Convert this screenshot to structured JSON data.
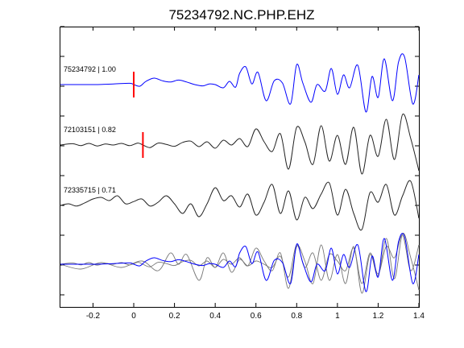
{
  "chart_data": {
    "type": "line",
    "title": "75234792.NC.PHP.EHZ",
    "xlabel": "",
    "ylabel": "",
    "xlim": [
      -0.36,
      1.4
    ],
    "x_ticks": [
      -0.2,
      0,
      0.2,
      0.4,
      0.6,
      0.8,
      1,
      1.2,
      1.4
    ],
    "x_tick_labels": [
      "-0.2",
      "0",
      "0.2",
      "0.4",
      "0.6",
      "0.8",
      "1",
      "1.2",
      "1.4"
    ],
    "grid": false,
    "legend": "none",
    "colors": {
      "reference": "#0000ff",
      "other": "#222222",
      "overlay_other": "#777777",
      "pick": "#ff0000",
      "axes": "#000000"
    },
    "traces": [
      {
        "name": "75234792 | 1.00",
        "color": "#0000ff",
        "pick_time": 0.0,
        "x": [
          -0.36,
          -0.2,
          -0.1,
          -0.02,
          0.0,
          0.03,
          0.06,
          0.1,
          0.14,
          0.18,
          0.22,
          0.26,
          0.3,
          0.34,
          0.37,
          0.4,
          0.44,
          0.47,
          0.5,
          0.52,
          0.55,
          0.58,
          0.61,
          0.65,
          0.69,
          0.73,
          0.77,
          0.8,
          0.83,
          0.87,
          0.9,
          0.94,
          0.97,
          1.0,
          1.03,
          1.06,
          1.1,
          1.14,
          1.17,
          1.2,
          1.23,
          1.27,
          1.3,
          1.33,
          1.37,
          1.4
        ],
        "y": [
          0,
          0,
          0.02,
          0.04,
          0.0,
          -0.05,
          0.1,
          0.2,
          0.12,
          0.08,
          0.14,
          0.08,
          0.0,
          -0.04,
          0.02,
          0.0,
          -0.1,
          0.1,
          -0.08,
          0.35,
          0.55,
          0.02,
          0.38,
          -0.5,
          0.12,
          0.05,
          -0.6,
          0.62,
          0.05,
          -0.55,
          0.0,
          -0.2,
          0.5,
          -0.3,
          0.3,
          -0.1,
          0.6,
          -0.85,
          0.25,
          -0.4,
          0.8,
          -0.5,
          0.7,
          0.85,
          -0.6,
          0.3
        ]
      },
      {
        "name": "72103151 | 0.82",
        "color": "#222222",
        "pick_time": 0.045,
        "x": [
          -0.36,
          -0.3,
          -0.26,
          -0.22,
          -0.18,
          -0.14,
          -0.1,
          -0.06,
          -0.02,
          0.02,
          0.045,
          0.08,
          0.12,
          0.16,
          0.2,
          0.24,
          0.28,
          0.32,
          0.36,
          0.4,
          0.44,
          0.48,
          0.52,
          0.56,
          0.6,
          0.64,
          0.68,
          0.72,
          0.76,
          0.8,
          0.84,
          0.88,
          0.92,
          0.96,
          1.0,
          1.04,
          1.08,
          1.12,
          1.16,
          1.2,
          1.24,
          1.28,
          1.32,
          1.36,
          1.4
        ],
        "y": [
          0,
          0.04,
          -0.02,
          0.05,
          -0.03,
          0.03,
          0.0,
          0.05,
          -0.02,
          0.06,
          0.0,
          -0.08,
          0.06,
          0.02,
          -0.04,
          0.08,
          0.12,
          -0.05,
          0.1,
          -0.1,
          0.15,
          0.0,
          0.2,
          -0.05,
          0.5,
          0.1,
          -0.2,
          0.35,
          -0.75,
          0.55,
          0.1,
          -0.6,
          0.6,
          -0.5,
          0.3,
          -0.6,
          0.55,
          -0.9,
          0.3,
          -0.35,
          0.8,
          -0.45,
          0.95,
          0.2,
          -0.8
        ]
      },
      {
        "name": "72335715 | 0.71",
        "color": "#222222",
        "pick_time": null,
        "x": [
          -0.36,
          -0.32,
          -0.28,
          -0.24,
          -0.2,
          -0.16,
          -0.12,
          -0.08,
          -0.04,
          0.0,
          0.04,
          0.08,
          0.12,
          0.16,
          0.2,
          0.24,
          0.28,
          0.32,
          0.36,
          0.4,
          0.44,
          0.48,
          0.52,
          0.56,
          0.6,
          0.64,
          0.68,
          0.72,
          0.76,
          0.8,
          0.84,
          0.88,
          0.92,
          0.96,
          1.0,
          1.04,
          1.08,
          1.12,
          1.16,
          1.2,
          1.24,
          1.28,
          1.32,
          1.36,
          1.4
        ],
        "y": [
          0,
          0.05,
          -0.02,
          0.08,
          0.2,
          0.25,
          0.15,
          0.3,
          0.05,
          0.12,
          0.2,
          -0.02,
          0.1,
          0.3,
          0.05,
          -0.25,
          0.05,
          -0.35,
          0.05,
          0.55,
          0.15,
          0.3,
          -0.05,
          0.35,
          -0.3,
          0.1,
          0.65,
          -0.25,
          0.45,
          -0.45,
          0.25,
          -0.1,
          0.35,
          0.7,
          -0.3,
          0.5,
          -0.25,
          -0.75,
          0.4,
          0.1,
          0.65,
          -0.3,
          0.3,
          0.75,
          -0.4
        ]
      },
      {
        "name": "",
        "color": "#777777",
        "pick_time": null,
        "overlay": true,
        "x": [
          -0.36,
          -0.26,
          -0.16,
          -0.06,
          0.04,
          0.12,
          0.18,
          0.22,
          0.26,
          0.32,
          0.36,
          0.4,
          0.44,
          0.48,
          0.52,
          0.56,
          0.6,
          0.64,
          0.68,
          0.72,
          0.76,
          0.8,
          0.84,
          0.88,
          0.92,
          0.96,
          1.0,
          1.04,
          1.08,
          1.12,
          1.16,
          1.2,
          1.24,
          1.28,
          1.32,
          1.36,
          1.4
        ],
        "y": [
          0,
          -0.15,
          0.05,
          -0.1,
          0.1,
          -0.2,
          0.35,
          0.0,
          0.3,
          -0.5,
          0.2,
          -0.1,
          0.35,
          -0.25,
          0.15,
          -0.05,
          0.1,
          0.0,
          -0.1,
          0.25,
          -0.4,
          0.6,
          -0.1,
          0.35,
          -0.5,
          0.3,
          0.1,
          -0.2,
          0.5,
          -0.6,
          0.35,
          -0.3,
          0.55,
          0.2,
          0.9,
          -0.2,
          0.6
        ]
      }
    ],
    "overlay_reference_trace": "75234792 | 1.00"
  }
}
